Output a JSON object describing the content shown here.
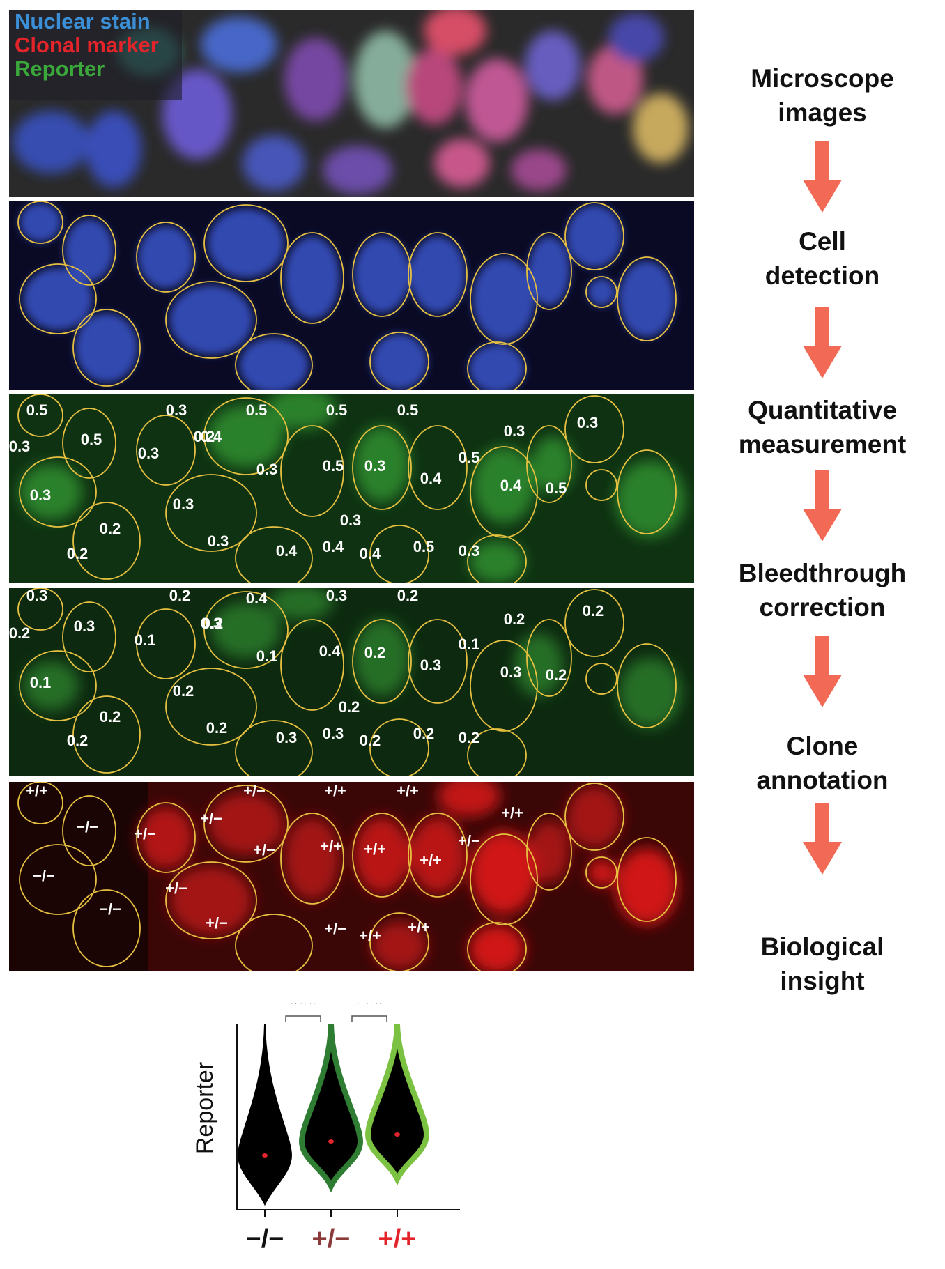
{
  "legend": {
    "nuclear": "Nuclear stain",
    "clonal": "Clonal marker",
    "reporter": "Reporter",
    "colors": {
      "nuclear": "#3a8fd6",
      "clonal": "#e3242b",
      "reporter": "#3aa83a"
    }
  },
  "steps": [
    {
      "line1": "Microscope",
      "line2": "images"
    },
    {
      "line1": "Cell",
      "line2": "detection"
    },
    {
      "line1": "Quantitative",
      "line2": "measurement"
    },
    {
      "line1": "Bleedthrough",
      "line2": "correction"
    },
    {
      "line1": "Clone",
      "line2": "annotation"
    },
    {
      "line1": "Biological",
      "line2": "insight"
    }
  ],
  "arrow_color": "#f26a55",
  "quantitative_values": [
    "0.5",
    "0.3",
    "0.5",
    "0.5",
    "0.5",
    "0.5",
    "0.3",
    "0.2",
    "0.3",
    "0.4",
    "0.3",
    "0.5",
    "0.3",
    "0.3",
    "0.4",
    "0.5",
    "0.3",
    "0.4",
    "0.5",
    "0.3",
    "0.3",
    "0.2",
    "0.3",
    "0.3",
    "0.2",
    "0.4",
    "0.4",
    "0.4",
    "0.5",
    "0.3"
  ],
  "bleedthrough_values": [
    "0.3",
    "0.2",
    "0.4",
    "0.3",
    "0.2",
    "0.3",
    "0.2",
    "0.2",
    "0.1",
    "0.3",
    "0.1",
    "0.4",
    "0.1",
    "0.2",
    "0.3",
    "0.1",
    "0.2",
    "0.3",
    "0.2",
    "0.2",
    "0.2",
    "0.2",
    "0.2",
    "0.2",
    "0.2",
    "0.3",
    "0.3",
    "0.2",
    "0.2",
    "0.2"
  ],
  "clone_values": [
    "+/+",
    "+/−",
    "+/+",
    "+/+",
    "−/−",
    "+/−",
    "+/−",
    "+/−",
    "+/+",
    "+/+",
    "+/−",
    "+/+",
    "+/+",
    "−/−",
    "+/−",
    "−/−",
    "+/−",
    "+/−",
    "+/+",
    "+/+"
  ],
  "chart_data": {
    "type": "violin",
    "ylabel": "Reporter",
    "categories": [
      "−/−",
      "+/−",
      "+/+"
    ],
    "category_colors": [
      "#111111",
      "#8b3a3a",
      "#e3242b"
    ],
    "outline_colors": [
      "#000000",
      "#2e7d32",
      "#7cc242"
    ],
    "medians": [
      0.2,
      0.35,
      0.45
    ],
    "median_color": "#e3242b",
    "significance": [
      {
        "from": "−/−",
        "to": "+/−",
        "label": "***"
      },
      {
        "from": "+/−",
        "to": "+/+",
        "label": "***"
      }
    ]
  }
}
